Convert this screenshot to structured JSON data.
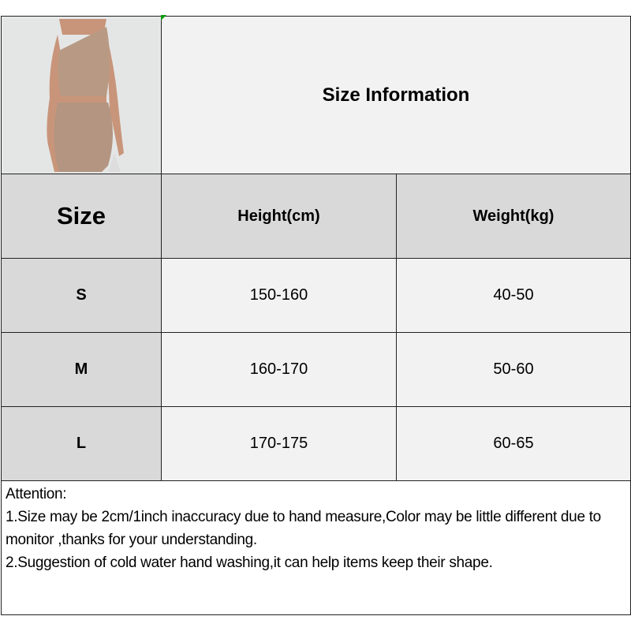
{
  "title": "Size Information",
  "photo": {
    "alt_subject": "model wearing beige one-shoulder crop top and skirt",
    "colors": {
      "outfit": "#b89a84",
      "skin": "#c8957a",
      "background": "#e6e8e8"
    }
  },
  "table": {
    "headers": [
      "Size",
      "Height(cm)",
      "Weight(kg)"
    ],
    "rows": [
      [
        "S",
        "150-160",
        "40-50"
      ],
      [
        "M",
        "160-170",
        "50-60"
      ],
      [
        "L",
        "170-175",
        "60-65"
      ]
    ]
  },
  "notes": {
    "heading": "Attention:",
    "line1": "1.Size may be 2cm/1inch inaccuracy due to hand measure,Color may be little different due to monitor ,thanks for your understanding.",
    "line2": "2.Suggestion of cold water hand washing,it can help items keep their shape."
  },
  "colors": {
    "header_bg": "#d9d9d9",
    "cell_bg": "#f2f2f2",
    "border": "#222222"
  }
}
